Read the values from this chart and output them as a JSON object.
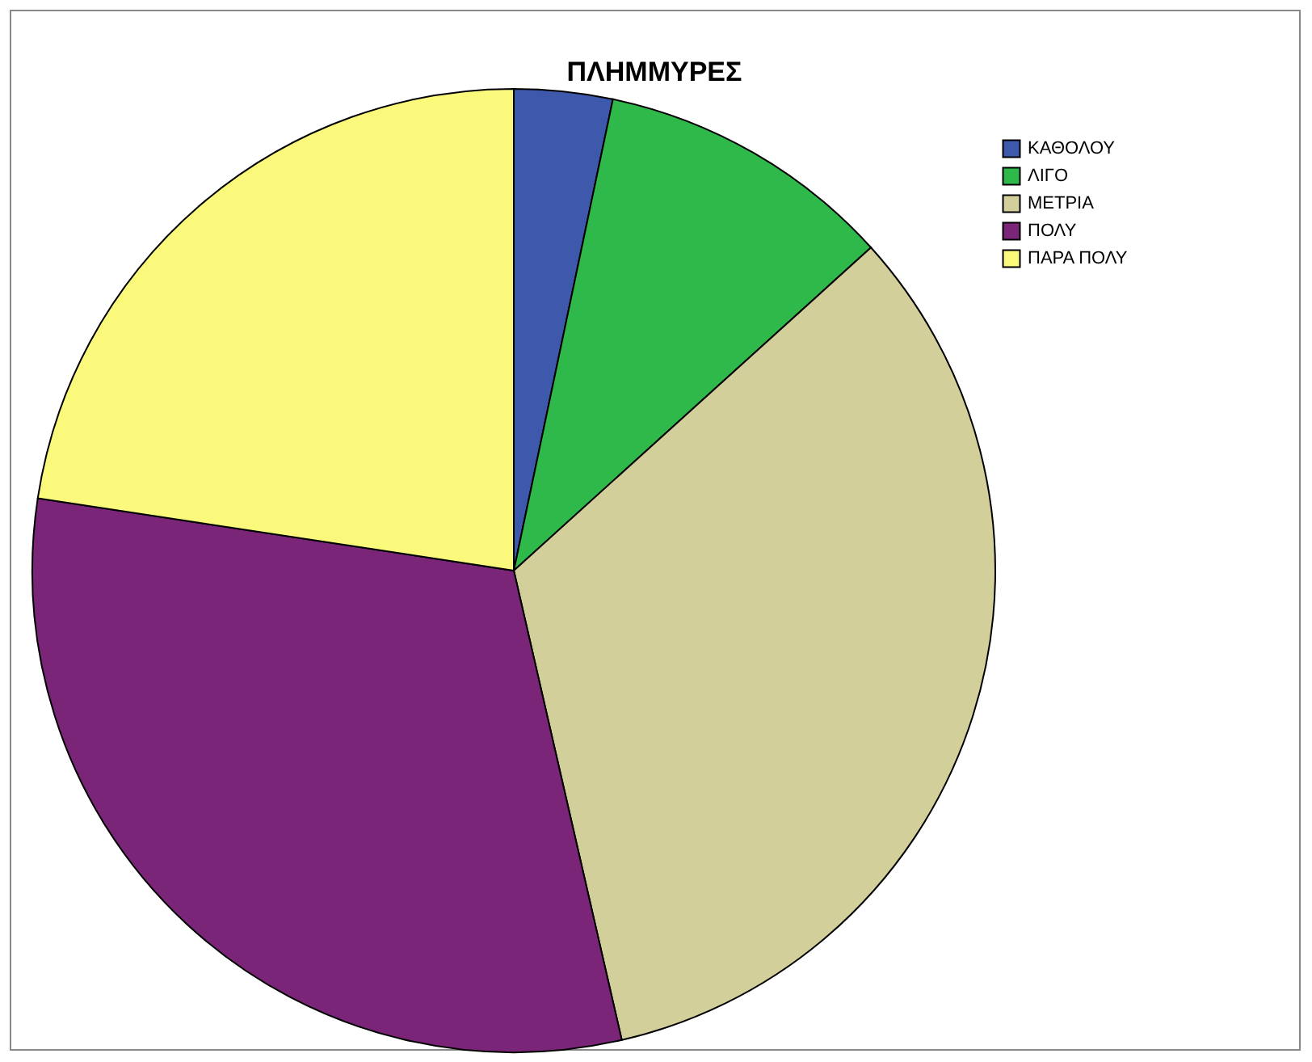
{
  "chart_data": {
    "type": "pie",
    "title": "ΠΛΗΜΜΥΡΕΣ",
    "categories": [
      "ΚΑΘΟΛΟΥ",
      "ΛΙΓΟ",
      "ΜΕΤΡΙΑ",
      "ΠΟΛΥ",
      "ΠΑΡΑ ΠΟΛΥ"
    ],
    "values": [
      3.3,
      10.0,
      33.1,
      31.0,
      22.6
    ],
    "colors": [
      "#3e58ac",
      "#30b94b",
      "#d3cf9b",
      "#7b2579",
      "#fbf97c"
    ],
    "legend": "top right"
  }
}
